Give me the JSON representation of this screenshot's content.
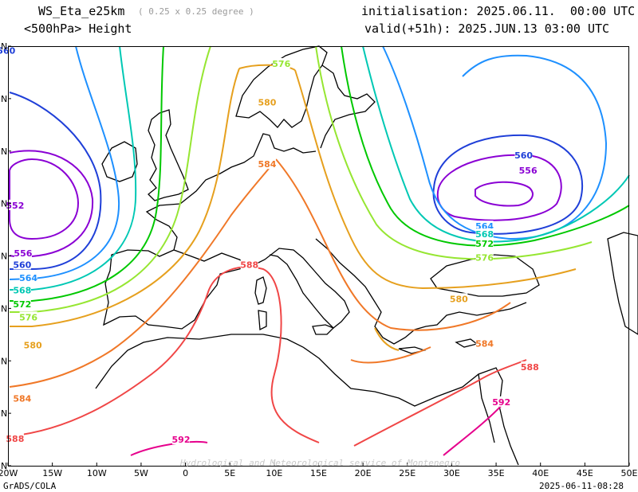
{
  "header": {
    "model": "WS_Eta_e25km",
    "resolution": "( 0.25 x 0.25 degree )",
    "field": "<500hPa> Height",
    "init": "initialisation: 2025.06.11.  00:00 UTC",
    "valid": "valid(+51h): 2025.JUN.13 03:00 UTC"
  },
  "footer": {
    "software": "GrADS/COLA",
    "timestamp": "2025-06-11-08:28",
    "watermark": "Hydrological and Meteorological service of Montenegro"
  },
  "chart_data": {
    "type": "contour",
    "field": "500hPa geopotential height (dam)",
    "x_axis": {
      "range": [
        -20,
        50
      ],
      "ticks": [
        -20,
        -15,
        -10,
        -5,
        0,
        5,
        10,
        15,
        20,
        25,
        30,
        35,
        40,
        45,
        50
      ],
      "tick_labels": [
        "20W",
        "15W",
        "10W",
        "5W",
        "0",
        "5E",
        "10E",
        "15E",
        "20E",
        "25E",
        "30E",
        "35E",
        "40E",
        "45E",
        "50E"
      ]
    },
    "y_axis": {
      "range": [
        24,
        72
      ],
      "ticks": [
        24,
        30,
        36,
        42,
        48,
        54,
        60,
        66,
        72
      ],
      "tick_labels": [
        "N",
        "N",
        "N",
        "N",
        "N",
        "N",
        "N",
        "N",
        "N"
      ]
    },
    "levels": [
      {
        "value": 552,
        "color": "#8a00d4",
        "labels": [
          [
            -19.2,
            53.8
          ]
        ]
      },
      {
        "value": 556,
        "color": "#8a00d4",
        "labels": [
          [
            -18.3,
            48.3
          ],
          [
            38.6,
            57.8
          ]
        ]
      },
      {
        "value": 560,
        "color": "#1f3fd8",
        "labels": [
          [
            -18.4,
            47.0
          ],
          [
            38.1,
            59.5
          ],
          [
            -20.2,
            71.5
          ]
        ]
      },
      {
        "value": 564,
        "color": "#1e90ff",
        "labels": [
          [
            -17.7,
            45.5
          ],
          [
            33.7,
            51.4
          ]
        ]
      },
      {
        "value": 568,
        "color": "#00c8b4",
        "labels": [
          [
            -18.4,
            44.1
          ],
          [
            33.7,
            50.5
          ]
        ]
      },
      {
        "value": 572,
        "color": "#00c800",
        "labels": [
          [
            -18.4,
            42.5
          ],
          [
            33.7,
            49.4
          ]
        ]
      },
      {
        "value": 576,
        "color": "#96e632",
        "labels": [
          [
            -17.7,
            41.0
          ],
          [
            33.7,
            47.8
          ],
          [
            10.8,
            70.0
          ]
        ]
      },
      {
        "value": 580,
        "color": "#e6a01e",
        "labels": [
          [
            -17.2,
            37.8
          ],
          [
            30.8,
            43.1
          ],
          [
            9.2,
            65.6
          ]
        ]
      },
      {
        "value": 584,
        "color": "#f07828",
        "labels": [
          [
            -18.4,
            31.7
          ],
          [
            33.7,
            38.0
          ],
          [
            9.2,
            58.5
          ]
        ]
      },
      {
        "value": 588,
        "color": "#f04646",
        "labels": [
          [
            -19.2,
            27.1
          ],
          [
            7.2,
            47.0
          ],
          [
            38.8,
            35.3
          ]
        ]
      },
      {
        "value": 592,
        "color": "#e6008c",
        "labels": [
          [
            -0.5,
            27.0
          ],
          [
            35.6,
            31.3
          ]
        ]
      }
    ]
  }
}
